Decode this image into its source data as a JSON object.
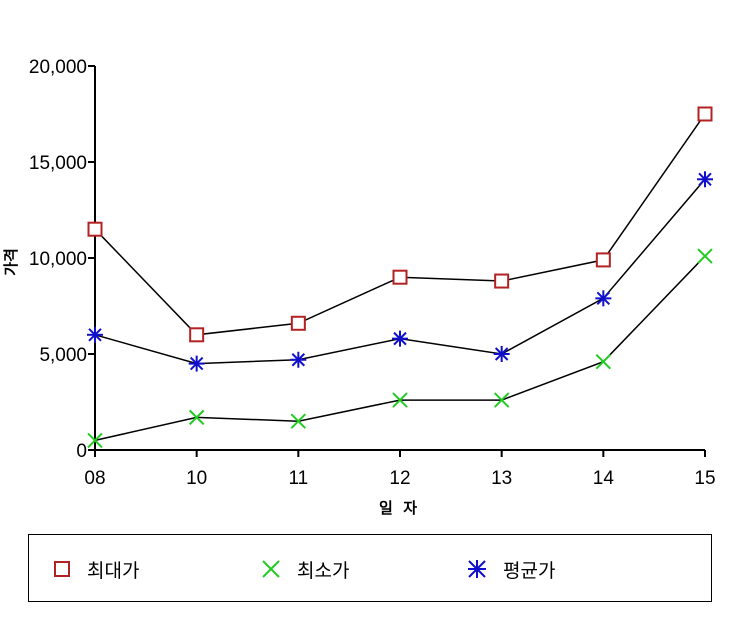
{
  "chart_data": {
    "type": "line",
    "title": "",
    "xlabel": "일  자",
    "ylabel": "가격",
    "categories": [
      "08",
      "10",
      "11",
      "12",
      "13",
      "14",
      "15"
    ],
    "ylim": [
      0,
      20000
    ],
    "yticks": [
      0,
      5000,
      10000,
      15000,
      20000
    ],
    "ytick_labels": [
      "0",
      "5,000",
      "10,000",
      "15,000",
      "20,000"
    ],
    "grid": false,
    "legend_position": "bottom",
    "series": [
      {
        "name": "최대가",
        "marker": "square-icon",
        "color": "#b22222",
        "values": [
          11500,
          6000,
          6600,
          9000,
          8800,
          9900,
          17500
        ]
      },
      {
        "name": "최소가",
        "marker": "x-icon",
        "color": "#22cc22",
        "values": [
          500,
          1700,
          1500,
          2600,
          2600,
          4600,
          10100
        ]
      },
      {
        "name": "평균가",
        "marker": "asterisk-icon",
        "color": "#1010cc",
        "values": [
          6000,
          4500,
          4700,
          5800,
          5000,
          7900,
          14100
        ]
      }
    ],
    "line_color": "#000000"
  }
}
